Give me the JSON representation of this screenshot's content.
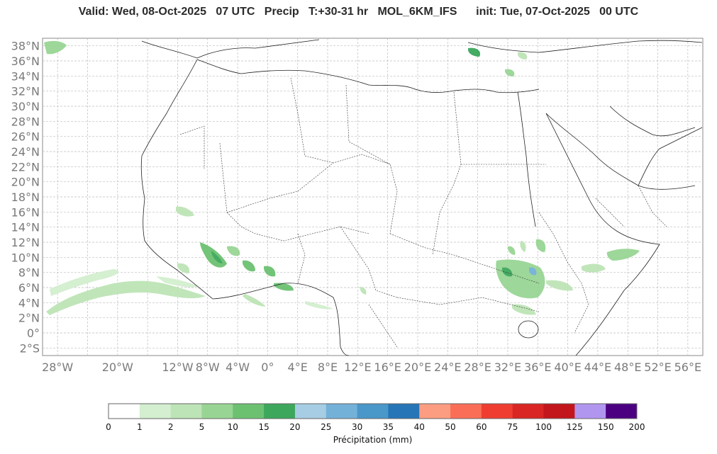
{
  "header": {
    "valid": "Valid: Wed, 08-Oct-2025",
    "hour": "07 UTC",
    "variable": "Precip",
    "lead": "T:+30-31 hr",
    "model": "MOL_6KM_IFS",
    "init": "init: Tue, 07-Oct-2025",
    "init_hour": "00 UTC"
  },
  "map": {
    "lat_labels": [
      "38°N",
      "36°N",
      "34°N",
      "32°N",
      "30°N",
      "28°N",
      "26°N",
      "24°N",
      "22°N",
      "20°N",
      "18°N",
      "16°N",
      "14°N",
      "12°N",
      "10°N",
      "8°N",
      "6°N",
      "4°N",
      "2°N",
      "0°",
      "2°S"
    ],
    "lon_labels": [
      "28°W",
      "20°W",
      "12°W",
      "8°W",
      "4°W",
      "0°",
      "4°E",
      "8°E",
      "12°E",
      "16°E",
      "20°E",
      "24°E",
      "28°E",
      "32°E",
      "36°E",
      "40°E",
      "44°E",
      "48°E",
      "52°E",
      "56°E"
    ],
    "lat_range": [
      -3,
      39
    ],
    "lon_range": [
      -30,
      58
    ],
    "grid": true
  },
  "colorbar": {
    "label": "Précipitation (mm)",
    "ticks": [
      "0",
      "1",
      "2",
      "5",
      "10",
      "15",
      "20",
      "25",
      "30",
      "35",
      "40",
      "50",
      "60",
      "75",
      "100",
      "125",
      "150",
      "200"
    ],
    "colors": [
      "#ffffff",
      "#d3efcf",
      "#bde4b6",
      "#98d594",
      "#6cc171",
      "#3da75c",
      "#a6cde3",
      "#74b1d9",
      "#4a97c9",
      "#2675b7",
      "#fc9d81",
      "#fa6e57",
      "#ef3d31",
      "#d92523",
      "#c3151c",
      "#b196f0",
      "#4b0082"
    ]
  }
}
